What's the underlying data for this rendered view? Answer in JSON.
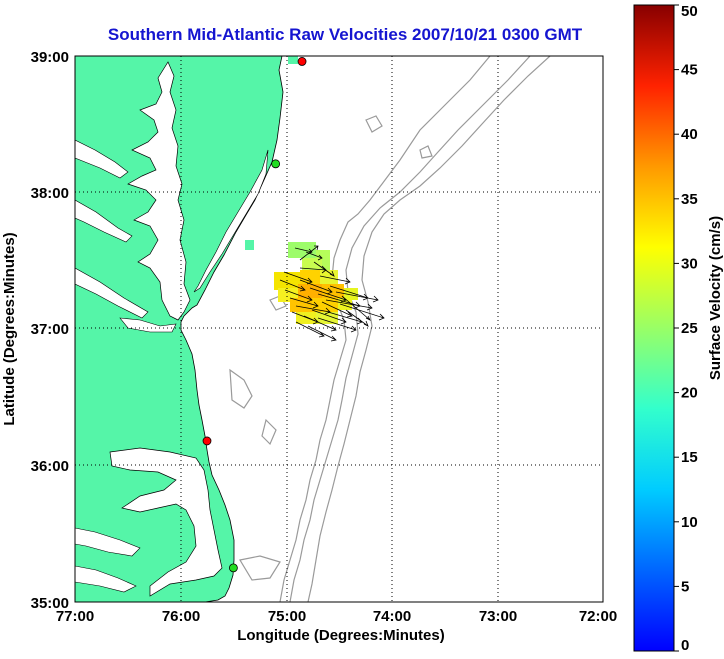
{
  "title": "Southern Mid-Atlantic Raw Velocities 2007/10/21 0300 GMT",
  "xlabel": "Longitude (Degrees:Minutes)",
  "ylabel": "Latitude (Degrees:Minutes)",
  "colorbar_label": "Surface Velocity (cm/s)",
  "x_ticks": [
    "77:00",
    "76:00",
    "75:00",
    "74:00",
    "73:00",
    "72:00"
  ],
  "y_ticks": [
    "39:00",
    "38:00",
    "37:00",
    "36:00",
    "35:00"
  ],
  "colorbar_ticks": [
    "0",
    "5",
    "10",
    "15",
    "20",
    "25",
    "30",
    "35",
    "40",
    "45",
    "50"
  ],
  "colors": {
    "land": "#55f5a8",
    "coast": "#000000",
    "bathymetry": "#9a9a9a",
    "title": "#1515d0",
    "grid": "#000000"
  },
  "chart_data": {
    "type": "map",
    "xlim": [
      -77,
      -72
    ],
    "ylim": [
      35,
      39
    ],
    "clim": [
      0,
      50
    ],
    "colormap": "jet",
    "grid": true,
    "stations": [
      {
        "lon": -74.85,
        "lat": 38.96,
        "color": "#ff0000"
      },
      {
        "lon": -75.1,
        "lat": 38.21,
        "color": "#22dd22"
      },
      {
        "lon": -75.75,
        "lat": 36.18,
        "color": "#ff0000"
      },
      {
        "lon": -75.5,
        "lat": 35.25,
        "color": "#22dd22"
      }
    ]
  }
}
